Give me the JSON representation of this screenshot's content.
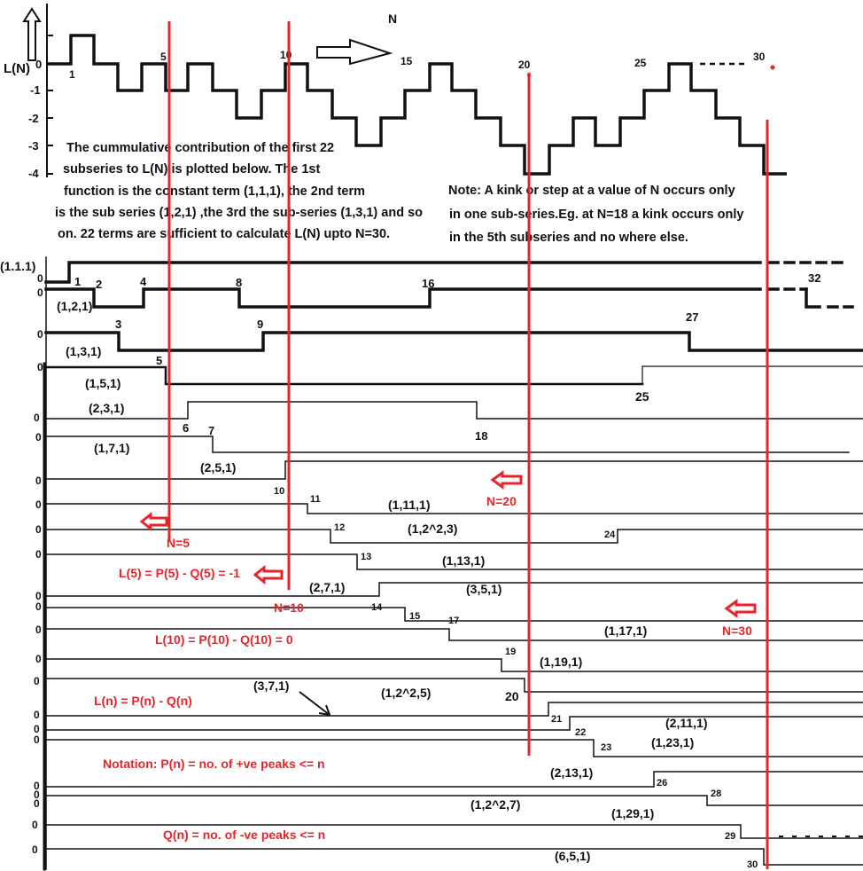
{
  "colors": {
    "ink": "#111111",
    "marker": "#e8242b",
    "background": "#ffffff"
  },
  "plot": {
    "ylabel": "L(N)",
    "arrow_label": "N",
    "yticks": [
      "0",
      "-1",
      "-2",
      "-3",
      "-4"
    ],
    "nlabels": [
      "1",
      "5",
      "10",
      "15",
      "20",
      "25",
      "30"
    ]
  },
  "notes": {
    "main": [
      "The cummulative contribution of the first 22",
      "subseries to L(N) is plotted below. The 1st",
      "function is the constant term (1,1,1),  the 2nd  term",
      "is the sub series (1,2,1) ,the 3rd the sub-series (1,3,1) and so",
      "on. 22 terms are sufficient to calculate L(N) upto N=30."
    ],
    "kink": [
      "Note: A kink or step at a value of N occurs only",
      "in one sub-series.Eg. at N=18 a kink occurs only",
      "in the 5th subseries and no where else."
    ]
  },
  "annotations": {
    "n5": "N=5",
    "n10": "N=10",
    "n20": "N=20",
    "n30": "N=30",
    "l5": "L(5) = P(5) - Q(5) = -1",
    "l10": "L(10) = P(10) - Q(10) = 0",
    "ln": "L(n) = P(n) - Q(n)",
    "notation_p": "Notation: P(n) = no. of +ve peaks <= n",
    "notation_q": "Q(n) = no. of -ve peaks <= n"
  },
  "zero": "0",
  "subseries": [
    {
      "name": "(1.1.1)",
      "kinks": [
        "1"
      ]
    },
    {
      "name": "(1,2,1)",
      "kinks": [
        "2",
        "4",
        "8",
        "16",
        "32"
      ]
    },
    {
      "name": "(1,3,1)",
      "kinks": [
        "3",
        "9",
        "27"
      ]
    },
    {
      "name": "(1,5,1)",
      "kinks": [
        "5",
        "25"
      ]
    },
    {
      "name": "(2,3,1)",
      "kinks": [
        "6",
        "18"
      ]
    },
    {
      "name": "(1,7,1)",
      "kinks": [
        "7"
      ]
    },
    {
      "name": "(2,5,1)",
      "kinks": [
        "10"
      ]
    },
    {
      "name": "(1,11,1)",
      "kinks": [
        "11"
      ]
    },
    {
      "name": "(1,2^2,3)",
      "kinks": [
        "12",
        "24"
      ]
    },
    {
      "name": "(1,13,1)",
      "kinks": [
        "13"
      ]
    },
    {
      "name": "(2,7,1)",
      "kinks": [
        "14"
      ]
    },
    {
      "name": "(3,5,1)",
      "kinks": [
        "15"
      ]
    },
    {
      "name": "(1,17,1)",
      "kinks": [
        "17"
      ]
    },
    {
      "name": "(1,19,1)",
      "kinks": [
        "19"
      ]
    },
    {
      "name": "(1,2^2,5)",
      "kinks": [
        "20"
      ]
    },
    {
      "name": "(3,7,1)",
      "kinks": [
        "21"
      ]
    },
    {
      "name": "(2,11,1)",
      "kinks": [
        "22"
      ]
    },
    {
      "name": "(1,23,1)",
      "kinks": [
        "23"
      ]
    },
    {
      "name": "(2,13,1)",
      "kinks": [
        "26"
      ]
    },
    {
      "name": "(1,2^2,7)",
      "kinks": [
        "28"
      ]
    },
    {
      "name": "(1,29,1)",
      "kinks": [
        "29"
      ]
    },
    {
      "name": "(6,5,1)",
      "kinks": [
        "30"
      ]
    }
  ]
}
